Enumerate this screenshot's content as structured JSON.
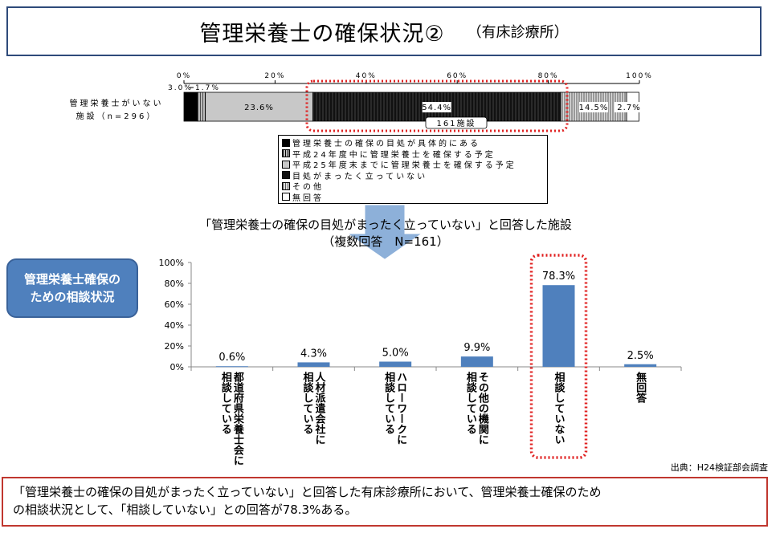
{
  "header": {
    "title": "管理栄養士の確保状況②",
    "subtitle": "（有床診療所）"
  },
  "colors": {
    "accent_blue": "#4f80bd",
    "highlight_red": "#e02020",
    "title_border": "#2e4a7a",
    "footer_border": "#c0372f"
  },
  "stacked": {
    "row_label_line1": "管理栄養士がいない",
    "row_label_line2": "施設（n=296）",
    "annotation_left": "3.0%",
    "annotation_left2": "1.7%",
    "callout": "161施設",
    "legend_items": [
      "管理栄養士の確保の目処が具体的にある",
      "平成24年度中に管理栄養士を確保する予定",
      "平成25年度末までに管理栄養士を確保する予定",
      "目処がまったく立っていない",
      "その他",
      "無回答"
    ]
  },
  "section2": {
    "title_line1": "「管理栄養士の確保の目処がまったく立っていない」と回答した施設",
    "title_line2": "（複数回答　N=161）"
  },
  "side_box": {
    "line1": "管理栄養士確保の",
    "line2": "ための相談状況"
  },
  "source": "出典：H24検証部会調査",
  "footer": {
    "line1": "「管理栄養士の確保の目処がまったく立っていない」と回答した有床診療所において、管理栄養士確保のため",
    "line2": "の相談状況として、「相談していない」との回答が78.3%ある。"
  },
  "chart_data": [
    {
      "type": "bar",
      "orientation": "horizontal-stacked",
      "categories": [
        "管理栄養士がいない施設（n=296）"
      ],
      "series": [
        {
          "name": "管理栄養士の確保の目処が具体的にある",
          "values": [
            3.0
          ],
          "label": "3.0%",
          "color": "#000000"
        },
        {
          "name": "平成24年度中に管理栄養士を確保する予定",
          "values": [
            1.7
          ],
          "label": "1.7%",
          "color": "#777777"
        },
        {
          "name": "平成25年度末までに管理栄養士を確保する予定",
          "values": [
            23.6
          ],
          "label": "23.6%",
          "color": "#c8c8c8"
        },
        {
          "name": "目処がまったく立っていない",
          "values": [
            54.4
          ],
          "label": "54.4%",
          "color": "#1a1a1a"
        },
        {
          "name": "その他",
          "values": [
            14.5
          ],
          "label": "14.5%",
          "color": "#a0a0a0"
        },
        {
          "name": "無回答",
          "values": [
            2.7
          ],
          "label": "2.7%",
          "color": "#ffffff"
        }
      ],
      "xlim": [
        0,
        100
      ],
      "ticks": [
        "0%",
        "20%",
        "40%",
        "60%",
        "80%",
        "100%"
      ]
    },
    {
      "type": "bar",
      "categories": [
        "都道府県栄養士会に\n相談している",
        "人材派遣会社に\n相談している",
        "ハローワークに\n相談している",
        "その他の機関に\n相談している",
        "相談していない",
        "無回答"
      ],
      "values": [
        0.6,
        4.3,
        5.0,
        9.9,
        78.3,
        2.5
      ],
      "value_labels": [
        "0.6%",
        "4.3%",
        "5.0%",
        "9.9%",
        "78.3%",
        "2.5%"
      ],
      "ylim": [
        0,
        100
      ],
      "yticks": [
        "0%",
        "20%",
        "40%",
        "60%",
        "80%",
        "100%"
      ],
      "bar_color": "#4f80bd"
    }
  ]
}
